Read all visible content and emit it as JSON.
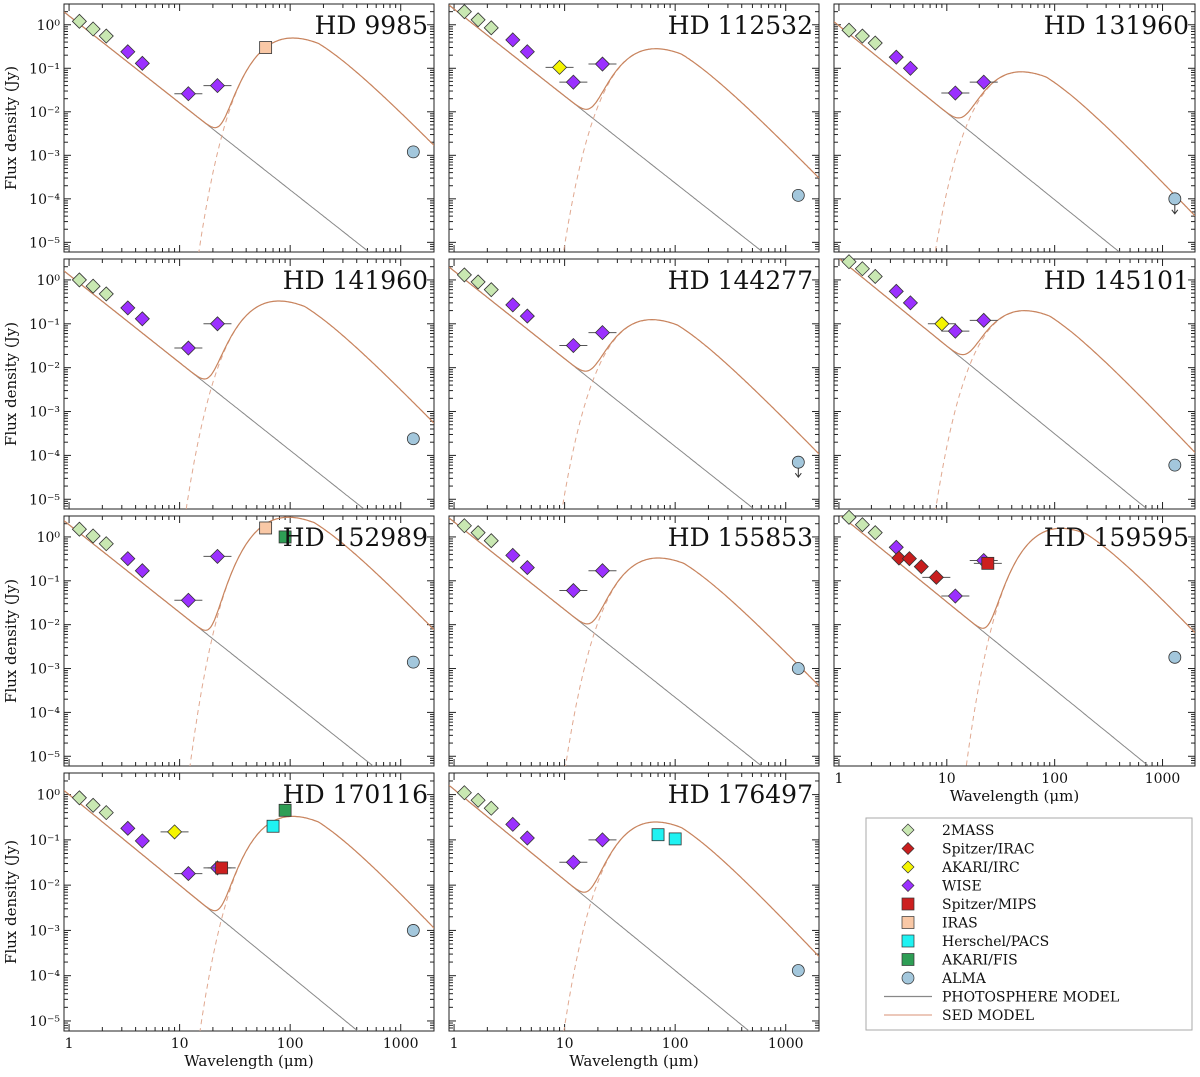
{
  "figure": {
    "y_axis_label": "Flux density (Jy)",
    "x_axis_label": "Wavelength (μm)",
    "x_ticks": [
      "1",
      "10",
      "100",
      "1000"
    ],
    "y_ticks": [
      "10⁰",
      "10⁻¹",
      "10⁻²",
      "10⁻³",
      "10⁻⁴",
      "10⁻⁵"
    ]
  },
  "legend": {
    "entries": [
      {
        "label": "2MASS",
        "marker": "diamond",
        "color": "#c9e8b2"
      },
      {
        "label": "Spitzer/IRAC",
        "marker": "diamond",
        "color": "#c81e1e"
      },
      {
        "label": "AKARI/IRC",
        "marker": "diamond",
        "color": "#f5f500"
      },
      {
        "label": "WISE",
        "marker": "diamond",
        "color": "#9b30ff"
      },
      {
        "label": "Spitzer/MIPS",
        "marker": "square",
        "color": "#cc1f1f"
      },
      {
        "label": "IRAS",
        "marker": "square",
        "color": "#f9c8a6"
      },
      {
        "label": "Herschel/PACS",
        "marker": "square",
        "color": "#1ff2f2"
      },
      {
        "label": "AKARI/FIS",
        "marker": "square",
        "color": "#2e9e55"
      },
      {
        "label": "ALMA",
        "marker": "circle",
        "color": "#a3c7dc"
      },
      {
        "label": "PHOTOSPHERE MODEL",
        "marker": "line",
        "color": "#888888"
      },
      {
        "label": "SED MODEL",
        "marker": "line",
        "color": "#e0a890"
      }
    ]
  },
  "chart_data": {
    "type": "scatter",
    "x_scale": "log",
    "y_scale": "log",
    "xlim": [
      0.9,
      2000
    ],
    "ylim": [
      6e-06,
      3
    ],
    "grid": false,
    "legend_position": "bottom-right",
    "panels": [
      {
        "title": "HD 9985",
        "photo_f1": 1.6,
        "disk_peak_lambda": 60,
        "disk_peak_flux": 0.3,
        "points": [
          {
            "instrument": "2MASS",
            "x": 1.24,
            "y": 1.2
          },
          {
            "instrument": "2MASS",
            "x": 1.65,
            "y": 0.8
          },
          {
            "instrument": "2MASS",
            "x": 2.17,
            "y": 0.55
          },
          {
            "instrument": "WISE",
            "x": 3.4,
            "y": 0.24
          },
          {
            "instrument": "WISE",
            "x": 4.6,
            "y": 0.13
          },
          {
            "instrument": "WISE",
            "x": 12,
            "y": 0.026
          },
          {
            "instrument": "WISE",
            "x": 22,
            "y": 0.04
          },
          {
            "instrument": "IRAS",
            "x": 60,
            "y": 0.3
          },
          {
            "instrument": "ALMA",
            "x": 1300,
            "y": 0.0012
          }
        ]
      },
      {
        "title": "HD 112532",
        "photo_f1": 2.3,
        "disk_peak_lambda": 38,
        "disk_peak_flux": 0.17,
        "points": [
          {
            "instrument": "2MASS",
            "x": 1.24,
            "y": 2.0
          },
          {
            "instrument": "2MASS",
            "x": 1.65,
            "y": 1.3
          },
          {
            "instrument": "2MASS",
            "x": 2.17,
            "y": 0.85
          },
          {
            "instrument": "WISE",
            "x": 3.4,
            "y": 0.45
          },
          {
            "instrument": "WISE",
            "x": 4.6,
            "y": 0.24
          },
          {
            "instrument": "AKARI/IRC",
            "x": 9,
            "y": 0.105
          },
          {
            "instrument": "WISE",
            "x": 12,
            "y": 0.048
          },
          {
            "instrument": "WISE",
            "x": 22,
            "y": 0.125
          },
          {
            "instrument": "ALMA",
            "x": 1300,
            "y": 0.00012
          }
        ]
      },
      {
        "title": "HD 131960",
        "photo_f1": 0.95,
        "disk_peak_lambda": 28,
        "disk_peak_flux": 0.05,
        "points": [
          {
            "instrument": "2MASS",
            "x": 1.24,
            "y": 0.75
          },
          {
            "instrument": "2MASS",
            "x": 1.65,
            "y": 0.55
          },
          {
            "instrument": "2MASS",
            "x": 2.17,
            "y": 0.38
          },
          {
            "instrument": "WISE",
            "x": 3.4,
            "y": 0.18
          },
          {
            "instrument": "WISE",
            "x": 4.6,
            "y": 0.1
          },
          {
            "instrument": "WISE",
            "x": 12,
            "y": 0.027
          },
          {
            "instrument": "WISE",
            "x": 22,
            "y": 0.048
          },
          {
            "instrument": "ALMA",
            "x": 1300,
            "y": 0.0001,
            "upper_limit": true
          }
        ]
      },
      {
        "title": "HD 141960",
        "photo_f1": 1.3,
        "disk_peak_lambda": 45,
        "disk_peak_flux": 0.2,
        "points": [
          {
            "instrument": "2MASS",
            "x": 1.24,
            "y": 1.0
          },
          {
            "instrument": "2MASS",
            "x": 1.65,
            "y": 0.72
          },
          {
            "instrument": "2MASS",
            "x": 2.17,
            "y": 0.48
          },
          {
            "instrument": "WISE",
            "x": 3.4,
            "y": 0.23
          },
          {
            "instrument": "WISE",
            "x": 4.6,
            "y": 0.13
          },
          {
            "instrument": "WISE",
            "x": 12,
            "y": 0.028
          },
          {
            "instrument": "WISE",
            "x": 22,
            "y": 0.1
          },
          {
            "instrument": "ALMA",
            "x": 1300,
            "y": 0.00024
          }
        ]
      },
      {
        "title": "HD 144277",
        "photo_f1": 1.6,
        "disk_peak_lambda": 35,
        "disk_peak_flux": 0.075,
        "points": [
          {
            "instrument": "2MASS",
            "x": 1.24,
            "y": 1.3
          },
          {
            "instrument": "2MASS",
            "x": 1.65,
            "y": 0.9
          },
          {
            "instrument": "2MASS",
            "x": 2.17,
            "y": 0.6
          },
          {
            "instrument": "WISE",
            "x": 3.4,
            "y": 0.27
          },
          {
            "instrument": "WISE",
            "x": 4.6,
            "y": 0.15
          },
          {
            "instrument": "WISE",
            "x": 12,
            "y": 0.032
          },
          {
            "instrument": "WISE",
            "x": 22,
            "y": 0.063
          },
          {
            "instrument": "ALMA",
            "x": 1300,
            "y": 7e-05,
            "upper_limit": true
          }
        ]
      },
      {
        "title": "HD 145101",
        "photo_f1": 3.1,
        "disk_peak_lambda": 30,
        "disk_peak_flux": 0.12,
        "points": [
          {
            "instrument": "2MASS",
            "x": 1.24,
            "y": 2.6
          },
          {
            "instrument": "2MASS",
            "x": 1.65,
            "y": 1.8
          },
          {
            "instrument": "2MASS",
            "x": 2.17,
            "y": 1.2
          },
          {
            "instrument": "WISE",
            "x": 3.4,
            "y": 0.55
          },
          {
            "instrument": "WISE",
            "x": 4.6,
            "y": 0.3
          },
          {
            "instrument": "AKARI/IRC",
            "x": 9,
            "y": 0.1
          },
          {
            "instrument": "WISE",
            "x": 12,
            "y": 0.068
          },
          {
            "instrument": "WISE",
            "x": 22,
            "y": 0.12
          },
          {
            "instrument": "ALMA",
            "x": 1300,
            "y": 6e-05
          }
        ]
      },
      {
        "title": "HD 152989",
        "photo_f1": 1.9,
        "disk_peak_lambda": 55,
        "disk_peak_flux": 1.7,
        "points": [
          {
            "instrument": "2MASS",
            "x": 1.24,
            "y": 1.5
          },
          {
            "instrument": "2MASS",
            "x": 1.65,
            "y": 1.05
          },
          {
            "instrument": "2MASS",
            "x": 2.17,
            "y": 0.7
          },
          {
            "instrument": "WISE",
            "x": 3.4,
            "y": 0.32
          },
          {
            "instrument": "WISE",
            "x": 4.6,
            "y": 0.17
          },
          {
            "instrument": "WISE",
            "x": 12,
            "y": 0.036
          },
          {
            "instrument": "WISE",
            "x": 22,
            "y": 0.36
          },
          {
            "instrument": "IRAS",
            "x": 60,
            "y": 1.6
          },
          {
            "instrument": "AKARI/FIS",
            "x": 90,
            "y": 1.0
          },
          {
            "instrument": "ALMA",
            "x": 1300,
            "y": 0.0014
          }
        ]
      },
      {
        "title": "HD 155853",
        "photo_f1": 2.2,
        "disk_peak_lambda": 40,
        "disk_peak_flux": 0.2,
        "points": [
          {
            "instrument": "2MASS",
            "x": 1.24,
            "y": 1.8
          },
          {
            "instrument": "2MASS",
            "x": 1.65,
            "y": 1.25
          },
          {
            "instrument": "2MASS",
            "x": 2.17,
            "y": 0.82
          },
          {
            "instrument": "WISE",
            "x": 3.4,
            "y": 0.38
          },
          {
            "instrument": "WISE",
            "x": 4.6,
            "y": 0.2
          },
          {
            "instrument": "WISE",
            "x": 12,
            "y": 0.06
          },
          {
            "instrument": "WISE",
            "x": 22,
            "y": 0.17
          },
          {
            "instrument": "ALMA",
            "x": 1300,
            "y": 0.001
          }
        ]
      },
      {
        "title": "HD 159595",
        "photo_f1": 3.3,
        "disk_peak_lambda": 65,
        "disk_peak_flux": 0.95,
        "points": [
          {
            "instrument": "2MASS",
            "x": 1.24,
            "y": 2.8
          },
          {
            "instrument": "2MASS",
            "x": 1.65,
            "y": 1.9
          },
          {
            "instrument": "2MASS",
            "x": 2.17,
            "y": 1.25
          },
          {
            "instrument": "WISE",
            "x": 3.4,
            "y": 0.58
          },
          {
            "instrument": "Spitzer/IRAC",
            "x": 3.6,
            "y": 0.33
          },
          {
            "instrument": "Spitzer/IRAC",
            "x": 4.5,
            "y": 0.32
          },
          {
            "instrument": "Spitzer/IRAC",
            "x": 5.8,
            "y": 0.21
          },
          {
            "instrument": "Spitzer/IRAC",
            "x": 8,
            "y": 0.12
          },
          {
            "instrument": "WISE",
            "x": 12,
            "y": 0.045
          },
          {
            "instrument": "WISE",
            "x": 22,
            "y": 0.29
          },
          {
            "instrument": "Spitzer/MIPS",
            "x": 24,
            "y": 0.25
          },
          {
            "instrument": "ALMA",
            "x": 1300,
            "y": 0.0018
          }
        ]
      },
      {
        "title": "HD 170116",
        "photo_f1": 1.0,
        "disk_peak_lambda": 60,
        "disk_peak_flux": 0.2,
        "points": [
          {
            "instrument": "2MASS",
            "x": 1.24,
            "y": 0.85
          },
          {
            "instrument": "2MASS",
            "x": 1.65,
            "y": 0.58
          },
          {
            "instrument": "2MASS",
            "x": 2.17,
            "y": 0.4
          },
          {
            "instrument": "WISE",
            "x": 3.4,
            "y": 0.18
          },
          {
            "instrument": "WISE",
            "x": 4.6,
            "y": 0.095
          },
          {
            "instrument": "AKARI/IRC",
            "x": 9,
            "y": 0.15
          },
          {
            "instrument": "WISE",
            "x": 12,
            "y": 0.018
          },
          {
            "instrument": "WISE",
            "x": 22,
            "y": 0.024
          },
          {
            "instrument": "Spitzer/MIPS",
            "x": 24,
            "y": 0.024
          },
          {
            "instrument": "Herschel/PACS",
            "x": 70,
            "y": 0.2
          },
          {
            "instrument": "AKARI/FIS",
            "x": 90,
            "y": 0.45
          },
          {
            "instrument": "ALMA",
            "x": 1300,
            "y": 0.001
          }
        ]
      },
      {
        "title": "HD 176497",
        "photo_f1": 1.3,
        "disk_peak_lambda": 38,
        "disk_peak_flux": 0.15,
        "points": [
          {
            "instrument": "2MASS",
            "x": 1.24,
            "y": 1.1
          },
          {
            "instrument": "2MASS",
            "x": 1.65,
            "y": 0.75
          },
          {
            "instrument": "2MASS",
            "x": 2.17,
            "y": 0.5
          },
          {
            "instrument": "WISE",
            "x": 3.4,
            "y": 0.22
          },
          {
            "instrument": "WISE",
            "x": 4.6,
            "y": 0.11
          },
          {
            "instrument": "WISE",
            "x": 12,
            "y": 0.032
          },
          {
            "instrument": "WISE",
            "x": 22,
            "y": 0.1
          },
          {
            "instrument": "Herschel/PACS",
            "x": 70,
            "y": 0.13
          },
          {
            "instrument": "Herschel/PACS",
            "x": 100,
            "y": 0.105
          },
          {
            "instrument": "ALMA",
            "x": 1300,
            "y": 0.00013
          }
        ]
      }
    ]
  }
}
